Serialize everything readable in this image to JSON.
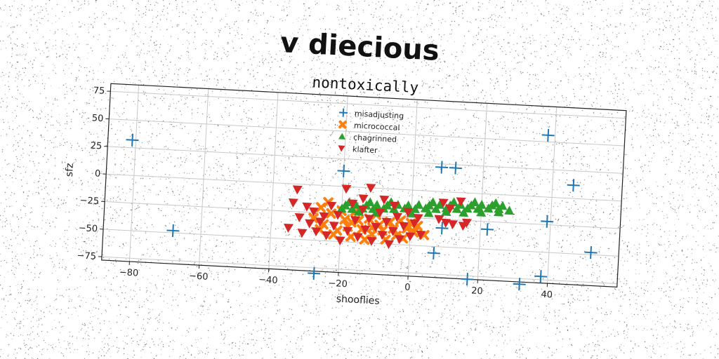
{
  "title": "v diecious",
  "chart_data": {
    "type": "scatter",
    "subtitle": "nontoxically",
    "xlabel": "shooflies",
    "ylabel": "sfz",
    "xlim": [
      -88,
      60
    ],
    "ylim": [
      -78,
      82
    ],
    "xticks": [
      -80,
      -60,
      -40,
      -20,
      0,
      20,
      40
    ],
    "yticks": [
      -75,
      -50,
      -25,
      0,
      25,
      50,
      75
    ],
    "grid": true,
    "legend_position": "top-center",
    "series": [
      {
        "name": "misadjusting",
        "color": "#1f77b4",
        "marker": "plus",
        "points": [
          [
            -81,
            32
          ],
          [
            -68,
            -48
          ],
          [
            -27,
            -80
          ],
          [
            -20,
            14
          ],
          [
            8,
            22
          ],
          [
            12,
            22
          ],
          [
            7,
            -56
          ],
          [
            9,
            -33
          ],
          [
            17,
            -78
          ],
          [
            22,
            -32
          ],
          [
            32,
            -80
          ],
          [
            38,
            -72
          ],
          [
            39,
            -22
          ],
          [
            46,
            12
          ],
          [
            38,
            56
          ],
          [
            52,
            -48
          ]
        ]
      },
      {
        "name": "micrococcal",
        "color": "#ff7f0e",
        "marker": "x",
        "points": [
          [
            -28,
            -30
          ],
          [
            -26,
            -20
          ],
          [
            -25,
            -35
          ],
          [
            -23,
            -25
          ],
          [
            -21,
            -40
          ],
          [
            -19,
            -30
          ],
          [
            -17,
            -45
          ],
          [
            -16,
            -22
          ],
          [
            -14,
            -38
          ],
          [
            -12,
            -28
          ],
          [
            -11,
            -42
          ],
          [
            -9,
            -33
          ],
          [
            -7,
            -46
          ],
          [
            -5,
            -36
          ],
          [
            -3,
            -28
          ],
          [
            -2,
            -44
          ],
          [
            0,
            -30
          ],
          [
            1,
            -38
          ],
          [
            -24,
            -15
          ],
          [
            -22,
            -44
          ],
          [
            -18,
            -36
          ],
          [
            -15,
            -30
          ],
          [
            -13,
            -47
          ],
          [
            -10,
            -24
          ],
          [
            -8,
            -38
          ],
          [
            -6,
            -30
          ],
          [
            -4,
            -42
          ],
          [
            -1,
            -35
          ],
          [
            2,
            -32
          ],
          [
            4,
            -40
          ],
          [
            -20,
            -22
          ],
          [
            -17,
            -32
          ],
          [
            -26,
            -40
          ],
          [
            -11,
            -36
          ]
        ]
      },
      {
        "name": "chagrinned",
        "color": "#2ca02c",
        "marker": "triangle-up",
        "points": [
          [
            -20,
            -20
          ],
          [
            -17,
            -20
          ],
          [
            -14,
            -19
          ],
          [
            -11,
            -19
          ],
          [
            -8,
            -18
          ],
          [
            -5,
            -18
          ],
          [
            -2,
            -17
          ],
          [
            1,
            -17
          ],
          [
            4,
            -16
          ],
          [
            7,
            -16
          ],
          [
            10,
            -15
          ],
          [
            13,
            -15
          ],
          [
            16,
            -14
          ],
          [
            19,
            -14
          ],
          [
            22,
            -13
          ],
          [
            25,
            -13
          ],
          [
            28,
            -14
          ],
          [
            -19,
            -17
          ],
          [
            -16,
            -16
          ],
          [
            -13,
            -16
          ],
          [
            -10,
            -15
          ],
          [
            -7,
            -15
          ],
          [
            -4,
            -14
          ],
          [
            -1,
            -14
          ],
          [
            2,
            -13
          ],
          [
            5,
            -13
          ],
          [
            8,
            -12
          ],
          [
            11,
            -12
          ],
          [
            14,
            -11
          ],
          [
            17,
            -11
          ],
          [
            20,
            -10
          ],
          [
            23,
            -10
          ],
          [
            26,
            -10
          ],
          [
            -10,
            -22
          ],
          [
            0,
            -21
          ],
          [
            10,
            -18
          ],
          [
            20,
            -17
          ],
          [
            -15,
            -22
          ],
          [
            5,
            -20
          ],
          [
            15,
            -18
          ],
          [
            25,
            -16
          ],
          [
            12,
            -9
          ],
          [
            18,
            -8
          ],
          [
            24,
            -8
          ],
          [
            6,
            -10
          ],
          [
            -6,
            -12
          ],
          [
            -12,
            -13
          ],
          [
            -18,
            -14
          ]
        ]
      },
      {
        "name": "klafter",
        "color": "#d62728",
        "marker": "triangle-down",
        "points": [
          [
            -33,
            -5
          ],
          [
            -34,
            -17
          ],
          [
            -32,
            -30
          ],
          [
            -35,
            -40
          ],
          [
            -31,
            -44
          ],
          [
            -29,
            -35
          ],
          [
            -28,
            -24
          ],
          [
            -30,
            -20
          ],
          [
            -27,
            -42
          ],
          [
            -25,
            -28
          ],
          [
            -24,
            -45
          ],
          [
            -22,
            -36
          ],
          [
            -21,
            -26
          ],
          [
            -20,
            -49
          ],
          [
            -19,
            -2
          ],
          [
            -18,
            -40
          ],
          [
            -16,
            -30
          ],
          [
            -15,
            -45
          ],
          [
            -14,
            -20
          ],
          [
            -13,
            -38
          ],
          [
            -12,
            -28
          ],
          [
            -11,
            -48
          ],
          [
            -10,
            -35
          ],
          [
            -9,
            -22
          ],
          [
            -8,
            -42
          ],
          [
            -7,
            -30
          ],
          [
            -6,
            -50
          ],
          [
            -5,
            -38
          ],
          [
            -4,
            -25
          ],
          [
            -3,
            -45
          ],
          [
            -2,
            -33
          ],
          [
            -1,
            -20
          ],
          [
            0,
            -42
          ],
          [
            1,
            -30
          ],
          [
            3,
            -40
          ],
          [
            2,
            -25
          ],
          [
            -12,
            0
          ],
          [
            -5,
            -15
          ],
          [
            8,
            -25
          ],
          [
            10,
            -28
          ],
          [
            11,
            -15
          ],
          [
            12,
            -29
          ],
          [
            14,
            -8
          ],
          [
            15,
            -30
          ],
          [
            16,
            -27
          ],
          [
            9,
            -10
          ],
          [
            -26,
            -33
          ],
          [
            -23,
            -18
          ],
          [
            -17,
            -15
          ],
          [
            -8,
            -10
          ],
          [
            -14,
            -10
          ]
        ]
      }
    ]
  }
}
